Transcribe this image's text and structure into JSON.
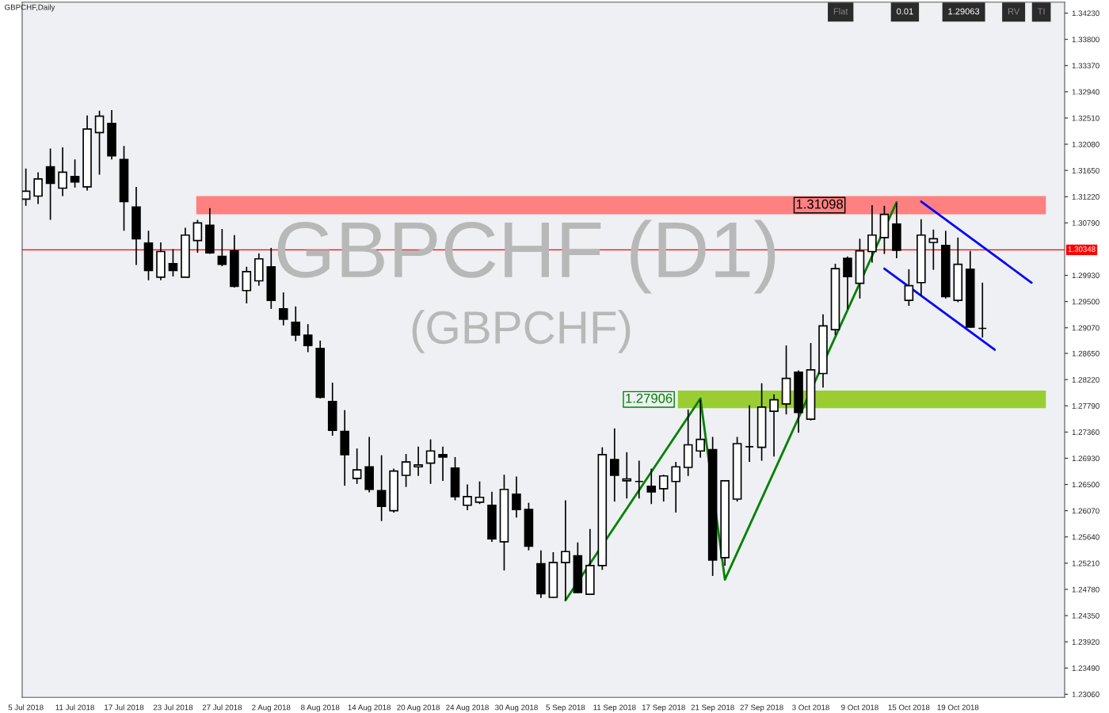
{
  "chart_data": {
    "type": "candlestick",
    "title": "GBPCHF,Daily",
    "categories": [
      "5 Jul 2018",
      null,
      null,
      null,
      "11 Jul 2018",
      null,
      null,
      null,
      "17 Jul 2018",
      null,
      null,
      null,
      "23 Jul 2018",
      null,
      null,
      null,
      "27 Jul 2018",
      null,
      null,
      null,
      "2 Aug 2018",
      null,
      null,
      null,
      "8 Aug 2018",
      null,
      null,
      null,
      "14 Aug 2018",
      null,
      null,
      null,
      "20 Aug 2018",
      null,
      null,
      null,
      "24 Aug 2018",
      null,
      null,
      null,
      "30 Aug 2018",
      null,
      null,
      null,
      "5 Sep 2018",
      null,
      null,
      null,
      "11 Sep 2018",
      null,
      null,
      null,
      "17 Sep 2018",
      null,
      null,
      null,
      "21 Sep 2018",
      null,
      null,
      null,
      "27 Sep 2018",
      null,
      null,
      null,
      "3 Oct 2018",
      null,
      null,
      null,
      "9 Oct 2018",
      null,
      null,
      null,
      "15 Oct 2018",
      null,
      null,
      null,
      "19 Oct 2018",
      null,
      null,
      null,
      null,
      null,
      null,
      null,
      null
    ],
    "ohlc": [
      [
        1.3118,
        1.3168,
        1.3107,
        1.3131
      ],
      [
        1.3123,
        1.3162,
        1.311,
        1.3151
      ],
      [
        1.3171,
        1.3201,
        1.3084,
        1.3144
      ],
      [
        1.3136,
        1.3203,
        1.3123,
        1.3162
      ],
      [
        1.3155,
        1.3183,
        1.3137,
        1.3146
      ],
      [
        1.3138,
        1.3255,
        1.3132,
        1.3233
      ],
      [
        1.3227,
        1.3263,
        1.3158,
        1.3254
      ],
      [
        1.3242,
        1.3264,
        1.3183,
        1.3189
      ],
      [
        1.3183,
        1.3205,
        1.3066,
        1.3114
      ],
      [
        1.3105,
        1.3138,
        1.301,
        1.3053
      ],
      [
        1.3046,
        1.3066,
        1.2985,
        1.3001
      ],
      [
        1.299,
        1.3047,
        1.2985,
        1.3032
      ],
      [
        1.3012,
        1.3036,
        1.2991,
        1.3001
      ],
      [
        1.299,
        1.3071,
        1.299,
        1.3059
      ],
      [
        1.305,
        1.3084,
        1.303,
        1.3079
      ],
      [
        1.3075,
        1.3103,
        1.3028,
        1.303
      ],
      [
        1.3024,
        1.3069,
        1.3008,
        1.3011
      ],
      [
        1.3033,
        1.3059,
        1.2973,
        1.2975
      ],
      [
        1.2968,
        1.3007,
        1.2947,
        1.2999
      ],
      [
        1.2984,
        1.3029,
        1.2976,
        1.302
      ],
      [
        1.3007,
        1.3038,
        1.2938,
        1.2952
      ],
      [
        1.2938,
        1.2965,
        1.2911,
        1.2921
      ],
      [
        1.2916,
        1.2942,
        1.2885,
        1.2895
      ],
      [
        1.2895,
        1.2913,
        1.2867,
        1.2878
      ],
      [
        1.2873,
        1.2886,
        1.2791,
        1.2793
      ],
      [
        1.2786,
        1.2817,
        1.273,
        1.2739
      ],
      [
        1.2737,
        1.2772,
        1.2648,
        1.2699
      ],
      [
        1.266,
        1.2709,
        1.2651,
        1.2674
      ],
      [
        1.2679,
        1.2728,
        1.2637,
        1.2642
      ],
      [
        1.264,
        1.2698,
        1.259,
        1.2614
      ],
      [
        1.2607,
        1.2676,
        1.2604,
        1.2672
      ],
      [
        1.2665,
        1.27,
        1.2646,
        1.2687
      ],
      [
        1.2679,
        1.2712,
        1.2664,
        1.2682
      ],
      [
        1.2685,
        1.2724,
        1.2651,
        1.2705
      ],
      [
        1.2699,
        1.2712,
        1.2656,
        1.2695
      ],
      [
        1.2677,
        1.2695,
        1.2624,
        1.263
      ],
      [
        1.2616,
        1.265,
        1.2608,
        1.263
      ],
      [
        1.2621,
        1.2655,
        1.2618,
        1.2629
      ],
      [
        1.2616,
        1.2638,
        1.2556,
        1.2561
      ],
      [
        1.2556,
        1.2666,
        1.2509,
        1.2642
      ],
      [
        1.2634,
        1.2663,
        1.2596,
        1.2609
      ],
      [
        1.2609,
        1.262,
        1.2542,
        1.2549
      ],
      [
        1.252,
        1.2542,
        1.2464,
        1.2471
      ],
      [
        1.2465,
        1.2539,
        1.2464,
        1.2522
      ],
      [
        1.2522,
        1.2624,
        1.246,
        1.254
      ],
      [
        1.2533,
        1.2555,
        1.2472,
        1.2473
      ],
      [
        1.247,
        1.2577,
        1.2469,
        1.2517
      ],
      [
        1.2517,
        1.2711,
        1.251,
        1.2699
      ],
      [
        1.2691,
        1.2742,
        1.2622,
        1.2665
      ],
      [
        1.2656,
        1.2703,
        1.2627,
        1.2659
      ],
      [
        1.2655,
        1.2689,
        1.2627,
        1.2655
      ],
      [
        1.2647,
        1.2676,
        1.2618,
        1.2638
      ],
      [
        1.2643,
        1.2666,
        1.2622,
        1.2664
      ],
      [
        1.2655,
        1.2687,
        1.2604,
        1.2679
      ],
      [
        1.2678,
        1.2773,
        1.2664,
        1.2715
      ],
      [
        1.2705,
        1.2789,
        1.2694,
        1.2724
      ],
      [
        1.2707,
        1.2728,
        1.25,
        1.2526
      ],
      [
        1.253,
        1.2656,
        1.2517,
        1.2656
      ],
      [
        1.2626,
        1.2728,
        1.2622,
        1.2717
      ],
      [
        1.2712,
        1.278,
        1.2687,
        1.2712
      ],
      [
        1.2711,
        1.2816,
        1.2689,
        1.2777
      ],
      [
        1.277,
        1.2798,
        1.2696,
        1.2789
      ],
      [
        1.2782,
        1.2878,
        1.2765,
        1.2824
      ],
      [
        1.2834,
        1.2837,
        1.2735,
        1.2768
      ],
      [
        1.2757,
        1.2882,
        1.2755,
        1.2838
      ],
      [
        1.2832,
        1.2929,
        1.2809,
        1.291
      ],
      [
        1.2904,
        1.3012,
        1.2895,
        1.3004
      ],
      [
        1.3021,
        1.3024,
        1.2938,
        1.2991
      ],
      [
        1.298,
        1.3053,
        1.2955,
        1.3033
      ],
      [
        1.3032,
        1.3108,
        1.3014,
        1.3059
      ],
      [
        1.3055,
        1.3107,
        1.3028,
        1.3093
      ],
      [
        1.3077,
        1.3112,
        1.3021,
        1.3034
      ],
      [
        1.2952,
        1.3003,
        1.2943,
        1.2976
      ],
      [
        1.2981,
        1.3085,
        1.296,
        1.3059
      ],
      [
        1.3047,
        1.3068,
        1.3002,
        1.3053
      ],
      [
        1.3042,
        1.3066,
        1.2955,
        1.2958
      ],
      [
        1.2952,
        1.3055,
        1.2949,
        1.3011
      ],
      [
        1.3003,
        1.3033,
        1.2907,
        1.2908
      ],
      [
        1.2906,
        1.2981,
        1.2891,
        1.2906
      ],
      null,
      null,
      null,
      null,
      null,
      null
    ],
    "series": [
      {
        "type": "line",
        "values": [
          null,
          null,
          null,
          null,
          null,
          null,
          null,
          null,
          null,
          null,
          null,
          null,
          null,
          null,
          null,
          null,
          null,
          null,
          null,
          null,
          null,
          null,
          null,
          null,
          null,
          null,
          null,
          null,
          null,
          null,
          null,
          null,
          null,
          null,
          null,
          null,
          null,
          null,
          null,
          null,
          null,
          null,
          null,
          null,
          1.246,
          null,
          null,
          null,
          null,
          null,
          null,
          null,
          null,
          null,
          null,
          1.2791,
          null,
          1.2494,
          null,
          null,
          null,
          null,
          null,
          null,
          null,
          null,
          null,
          null,
          null,
          null,
          null,
          1.3113,
          null,
          null,
          null,
          null,
          null,
          null,
          null,
          null,
          null,
          null,
          null,
          null,
          null
        ],
        "color": "#008000"
      },
      {
        "type": "line",
        "values": [
          null,
          null,
          null,
          null,
          null,
          null,
          null,
          null,
          null,
          null,
          null,
          null,
          null,
          null,
          null,
          null,
          null,
          null,
          null,
          null,
          null,
          null,
          null,
          null,
          null,
          null,
          null,
          null,
          null,
          null,
          null,
          null,
          null,
          null,
          null,
          null,
          null,
          null,
          null,
          null,
          null,
          null,
          null,
          null,
          null,
          null,
          null,
          null,
          null,
          null,
          null,
          null,
          null,
          null,
          null,
          null,
          null,
          null,
          null,
          null,
          null,
          null,
          null,
          null,
          null,
          null,
          null,
          null,
          null,
          null,
          null,
          null,
          null,
          1.3114,
          null,
          null,
          null,
          null,
          null,
          null,
          null,
          null,
          1.2981,
          null,
          null
        ],
        "color": "#0000ff"
      },
      {
        "type": "line",
        "values": [
          null,
          null,
          null,
          null,
          null,
          null,
          null,
          null,
          null,
          null,
          null,
          null,
          null,
          null,
          null,
          null,
          null,
          null,
          null,
          null,
          null,
          null,
          null,
          null,
          null,
          null,
          null,
          null,
          null,
          null,
          null,
          null,
          null,
          null,
          null,
          null,
          null,
          null,
          null,
          null,
          null,
          null,
          null,
          null,
          null,
          null,
          null,
          null,
          null,
          null,
          null,
          null,
          null,
          null,
          null,
          null,
          null,
          null,
          null,
          null,
          null,
          null,
          null,
          null,
          null,
          null,
          null,
          null,
          null,
          null,
          1.3004,
          null,
          null,
          null,
          null,
          null,
          null,
          null,
          null,
          1.2871,
          null,
          null,
          null,
          null,
          null
        ],
        "color": "#0000ff"
      }
    ],
    "ylim": [
      1.2301,
      1.3441
    ],
    "yticks": [
      {
        "value": 1.2306,
        "label": "1.23060"
      },
      {
        "value": 1.2349,
        "label": "1.23490"
      },
      {
        "value": 1.2392,
        "label": "1.23920"
      },
      {
        "value": 1.2435,
        "label": "1.24350"
      },
      {
        "value": 1.2478,
        "label": "1.24780"
      },
      {
        "value": 1.2521,
        "label": "1.25210"
      },
      {
        "value": 1.2564,
        "label": "1.25640"
      },
      {
        "value": 1.2607,
        "label": "1.26070"
      },
      {
        "value": 1.265,
        "label": "1.26500"
      },
      {
        "value": 1.2693,
        "label": "1.26930"
      },
      {
        "value": 1.2736,
        "label": "1.27360"
      },
      {
        "value": 1.2779,
        "label": "1.27790"
      },
      {
        "value": 1.2822,
        "label": "1.28220"
      },
      {
        "value": 1.2865,
        "label": "1.28650"
      },
      {
        "value": 1.2907,
        "label": "1.29070"
      },
      {
        "value": 1.295,
        "label": "1.29500"
      },
      {
        "value": 1.2993,
        "label": "1.29930"
      },
      {
        "value": 1.3079,
        "label": "1.30790"
      },
      {
        "value": 1.3122,
        "label": "1.31220"
      },
      {
        "value": 1.3165,
        "label": "1.31650"
      },
      {
        "value": 1.3208,
        "label": "1.32080"
      },
      {
        "value": 1.3251,
        "label": "1.32510"
      },
      {
        "value": 1.3294,
        "label": "1.32940"
      },
      {
        "value": 1.3337,
        "label": "1.33370"
      },
      {
        "value": 1.338,
        "label": "1.33800"
      },
      {
        "value": 1.3423,
        "label": "1.34230"
      }
    ],
    "ref_lines": [
      {
        "axis": "y",
        "value": 1.30348,
        "label": "1.30348",
        "color": "#ff0000"
      }
    ],
    "bands": [
      {
        "axis": "y",
        "from": 1.3093,
        "to": 1.3123,
        "label": "1.31098",
        "color": "#ff8080"
      },
      {
        "axis": "y",
        "from": 1.2775,
        "to": 1.2804,
        "label": "1.27906",
        "color": "#9acd32"
      }
    ],
    "annotations": [
      "GBPCHF (D1)",
      "(GBPCHF)",
      "Flat",
      "0.01",
      "1.29063",
      "RV",
      "TI"
    ],
    "grid": false
  }
}
